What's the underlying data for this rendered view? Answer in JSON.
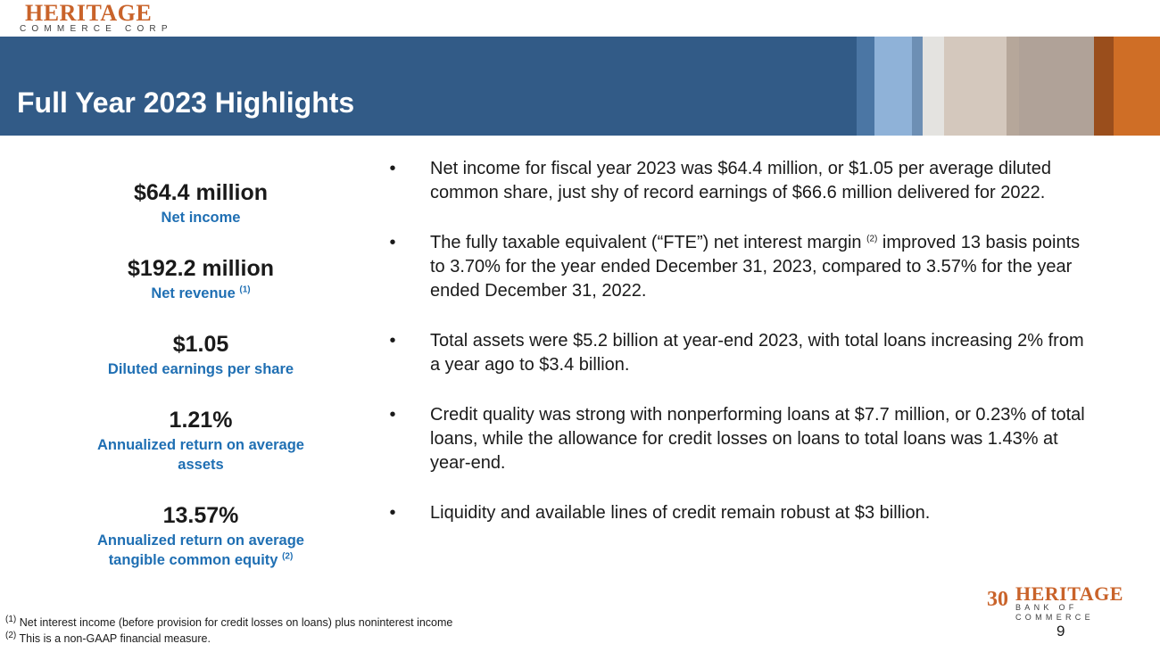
{
  "header": {
    "logo_brand": "HERITAGE",
    "logo_sub": "COMMERCE CORP",
    "title": "Full Year 2023 Highlights",
    "colors": {
      "banner": "#325b87",
      "accent": "#c9632a",
      "label": "#1f6fb3"
    }
  },
  "metrics": [
    {
      "value": "$64.4 million",
      "label": "Net income",
      "note": ""
    },
    {
      "value": "$192.2 million",
      "label": "Net revenue",
      "note": "(1)"
    },
    {
      "value": "$1.05",
      "label": "Diluted earnings per share",
      "note": ""
    },
    {
      "value": "1.21%",
      "label": "Annualized return on average assets",
      "note": ""
    },
    {
      "value": "13.57%",
      "label": "Annualized return on average tangible common equity",
      "note": "(2)"
    }
  ],
  "bullets": [
    {
      "text": "Net income for fiscal year 2023 was $64.4 million, or $1.05 per average diluted common share, just shy of record earnings of $66.6 million delivered for 2022."
    },
    {
      "before": "The fully taxable equivalent (“FTE”) net interest margin",
      "note": "(2)",
      "after": "improved 13 basis points to 3.70% for the year ended December 31, 2023, compared to 3.57% for the year ended December 31, 2022."
    },
    {
      "text": "Total assets were $5.2 billion at year-end 2023, with total loans increasing 2% from a year ago to $3.4 billion."
    },
    {
      "text": "Credit quality was strong with nonperforming loans at $7.7 million, or 0.23% of total loans, while the allowance for credit losses on loans to total loans was 1.43% at year-end."
    },
    {
      "text": "Liquidity and available lines of credit remain robust at $3 billion."
    }
  ],
  "bullet_symbol": "•",
  "footnotes": [
    {
      "mark": "(1)",
      "text": "Net interest income (before provision for credit losses on loans) plus noninterest income"
    },
    {
      "mark": "(2)",
      "text": "This is a non-GAAP financial measure."
    }
  ],
  "footer_logo": {
    "badge": "30",
    "brand": "HERITAGE",
    "sub": "BANK OF COMMERCE"
  },
  "page_number": "9"
}
